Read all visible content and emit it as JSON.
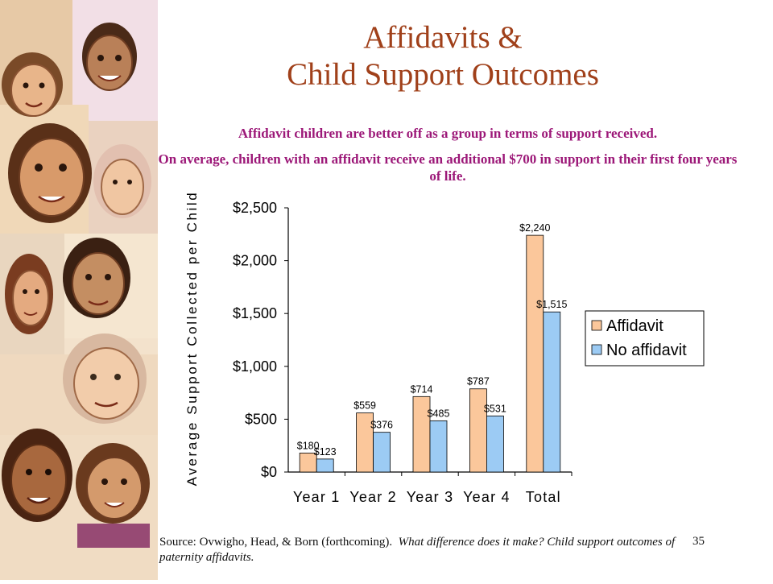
{
  "title": {
    "line1": "Affidavits &",
    "line2": "Child Support Outcomes"
  },
  "subtitle": {
    "line1": "Affidavit children are better off as a group in terms of support received.",
    "line2": "On average, children with an affidavit receive an additional $700 in support in their first four years of life."
  },
  "chart_data": {
    "type": "bar",
    "categories": [
      "Year 1",
      "Year 2",
      "Year 3",
      "Year 4",
      "Total"
    ],
    "series": [
      {
        "name": "Affidavit",
        "values": [
          180,
          559,
          714,
          787,
          2240
        ],
        "labels": [
          "$180",
          "$559",
          "$714",
          "$787",
          "$2,240"
        ],
        "color": "#fbc79b"
      },
      {
        "name": "No affidavit",
        "values": [
          123,
          376,
          485,
          531,
          1515
        ],
        "labels": [
          "$123",
          "$376",
          "$485",
          "$531",
          "$1,515"
        ],
        "color": "#9ccbf4"
      }
    ],
    "ylabel": "Average Support Collected per Child",
    "ylim": [
      0,
      2500
    ],
    "yticks": [
      0,
      500,
      1000,
      1500,
      2000,
      2500
    ],
    "ytick_labels": [
      "$0",
      "$500",
      "$1,000",
      "$1,500",
      "$2,000",
      "$2,500"
    ],
    "grid": false,
    "legend_position": "right"
  },
  "footer": {
    "source_prefix": "Source: Ovwigho, Head, & Born (forthcoming).",
    "source_title": "What difference does it make? Child support outcomes of paternity affidavits."
  },
  "page_number": "35"
}
